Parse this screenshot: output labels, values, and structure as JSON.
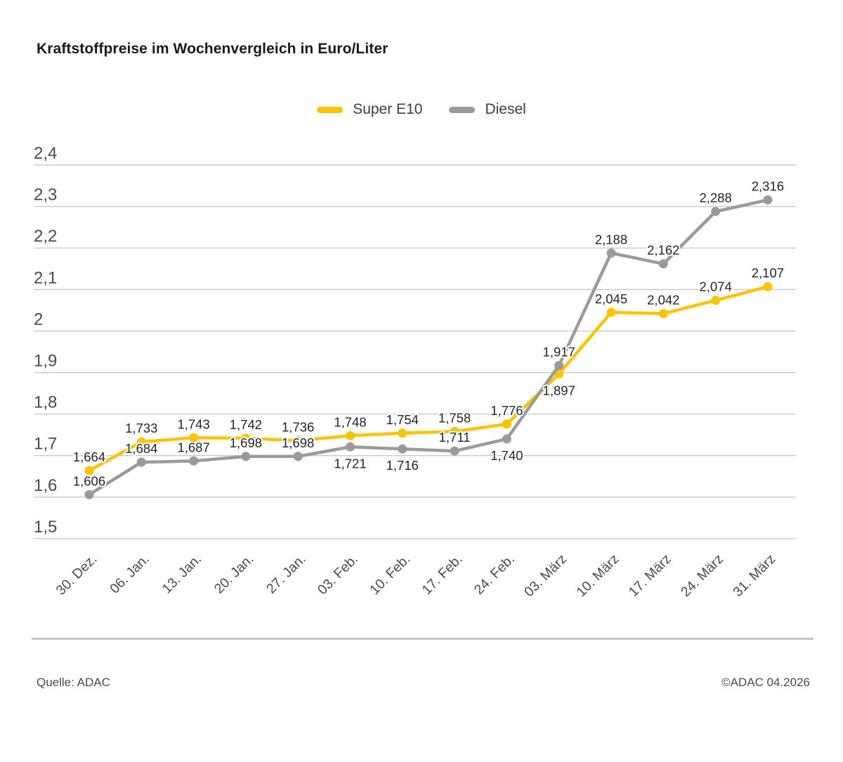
{
  "title": "Kraftstoffpreise im Wochenvergleich in Euro/Liter",
  "legend": [
    {
      "label": "Super E10",
      "color": "#FDC300"
    },
    {
      "label": "Diesel",
      "color": "#9A9A9A"
    }
  ],
  "footer": {
    "source": "Quelle: ADAC",
    "copyright": "©ADAC 04.2026"
  },
  "chart_data": {
    "type": "line",
    "title": "Kraftstoffpreise im Wochenvergleich in Euro/Liter",
    "categories": [
      "30. Dez.",
      "06. Jan.",
      "13. Jan.",
      "20. Jan.",
      "27. Jan.",
      "03. Feb.",
      "10. Feb.",
      "17. Feb.",
      "24. Feb.",
      "03. März",
      "10. März",
      "17. März",
      "24. März",
      "31. März"
    ],
    "series": [
      {
        "name": "Super E10",
        "color": "#FDC300",
        "values": [
          1.664,
          1.733,
          1.743,
          1.742,
          1.736,
          1.748,
          1.754,
          1.758,
          1.776,
          1.897,
          2.045,
          2.042,
          2.074,
          2.107
        ],
        "label_pos": [
          "above",
          "above",
          "above",
          "above",
          "above",
          "above",
          "above",
          "above",
          "above",
          "below",
          "above",
          "above",
          "above",
          "above"
        ]
      },
      {
        "name": "Diesel",
        "color": "#9A9A9A",
        "values": [
          1.606,
          1.684,
          1.687,
          1.698,
          1.698,
          1.721,
          1.716,
          1.711,
          1.74,
          1.917,
          2.188,
          2.162,
          2.288,
          2.316
        ],
        "label_pos": [
          "above",
          "above",
          "above",
          "above",
          "above",
          "below",
          "below",
          "above",
          "below",
          "above",
          "above",
          "above",
          "above",
          "above"
        ]
      }
    ],
    "ylim": [
      1.5,
      2.4
    ],
    "yticks": [
      "2,4",
      "2,3",
      "2,2",
      "2,1",
      "2",
      "1,9",
      "1,8",
      "1,7",
      "1,6",
      "1,5"
    ],
    "ytick_values": [
      2.4,
      2.3,
      2.2,
      2.1,
      2.0,
      1.9,
      1.8,
      1.7,
      1.6,
      1.5
    ],
    "ylabel": "Euro/Liter",
    "xlabel": "",
    "grid": "horizontal",
    "legend_position": "top-center",
    "decimal_separator": ","
  }
}
